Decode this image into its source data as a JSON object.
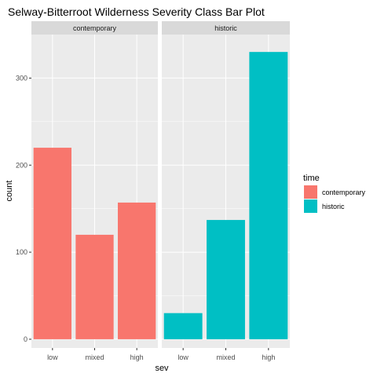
{
  "chart_data": {
    "type": "bar",
    "title": "Selway-Bitterroot Wilderness Severity Class Bar Plot",
    "xlabel": "sev",
    "ylabel": "count",
    "categories": [
      "low",
      "mixed",
      "high"
    ],
    "ylim": [
      -10,
      350
    ],
    "yticks": [
      0,
      100,
      200,
      300
    ],
    "grid": true,
    "facets": [
      {
        "name": "contemporary",
        "series": "contemporary",
        "values": [
          220,
          120,
          157
        ]
      },
      {
        "name": "historic",
        "series": "historic",
        "values": [
          30,
          137,
          330
        ]
      }
    ],
    "legend": {
      "title": "time",
      "placement": "right",
      "entries": [
        {
          "label": "contemporary",
          "color": "#F8766D"
        },
        {
          "label": "historic",
          "color": "#00BFC4"
        }
      ]
    },
    "colors": {
      "panel_bg": "#EBEBEB",
      "strip_bg": "#D9D9D9",
      "grid": "#FFFFFF"
    }
  }
}
